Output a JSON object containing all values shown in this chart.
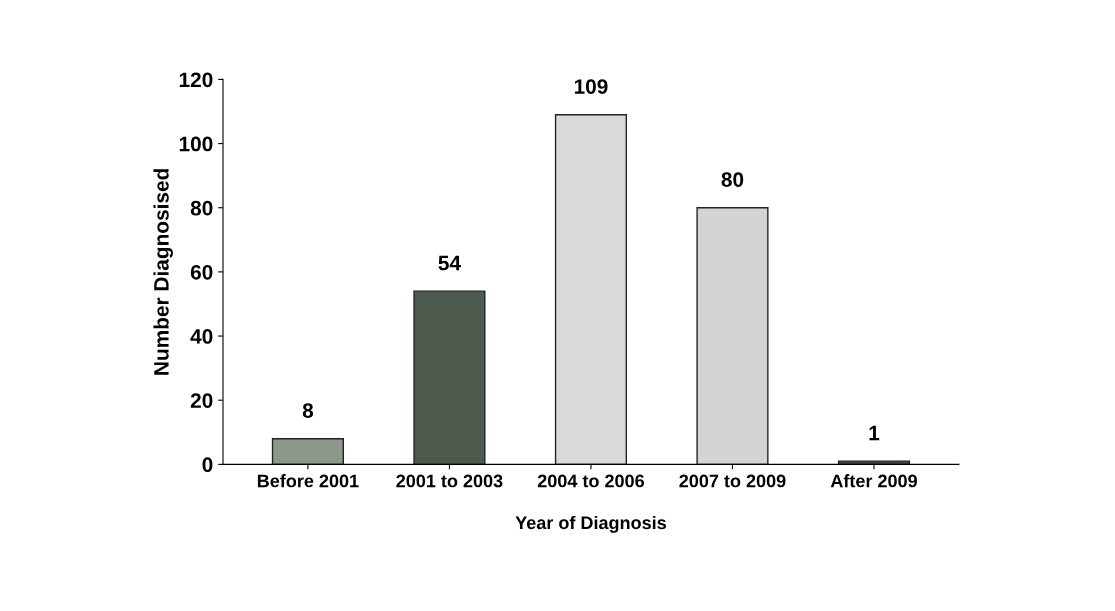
{
  "chart_data": {
    "type": "bar",
    "categories": [
      "Before 2001",
      "2001 to 2003",
      "2004 to 2006",
      "2007 to 2009",
      "After 2009"
    ],
    "values": [
      8,
      54,
      109,
      80,
      1
    ],
    "colors": [
      "#8c9888",
      "#4d5a4e",
      "#d9d9d9",
      "#d4d4d4",
      "#3f4d44"
    ],
    "xlabel": "Year of Diagnosis",
    "ylabel": "Number Diagnosised",
    "ylim": [
      0,
      120
    ],
    "yticks": [
      0,
      20,
      40,
      60,
      80,
      100,
      120
    ],
    "data_labels": true,
    "grid": false,
    "legend": false
  }
}
